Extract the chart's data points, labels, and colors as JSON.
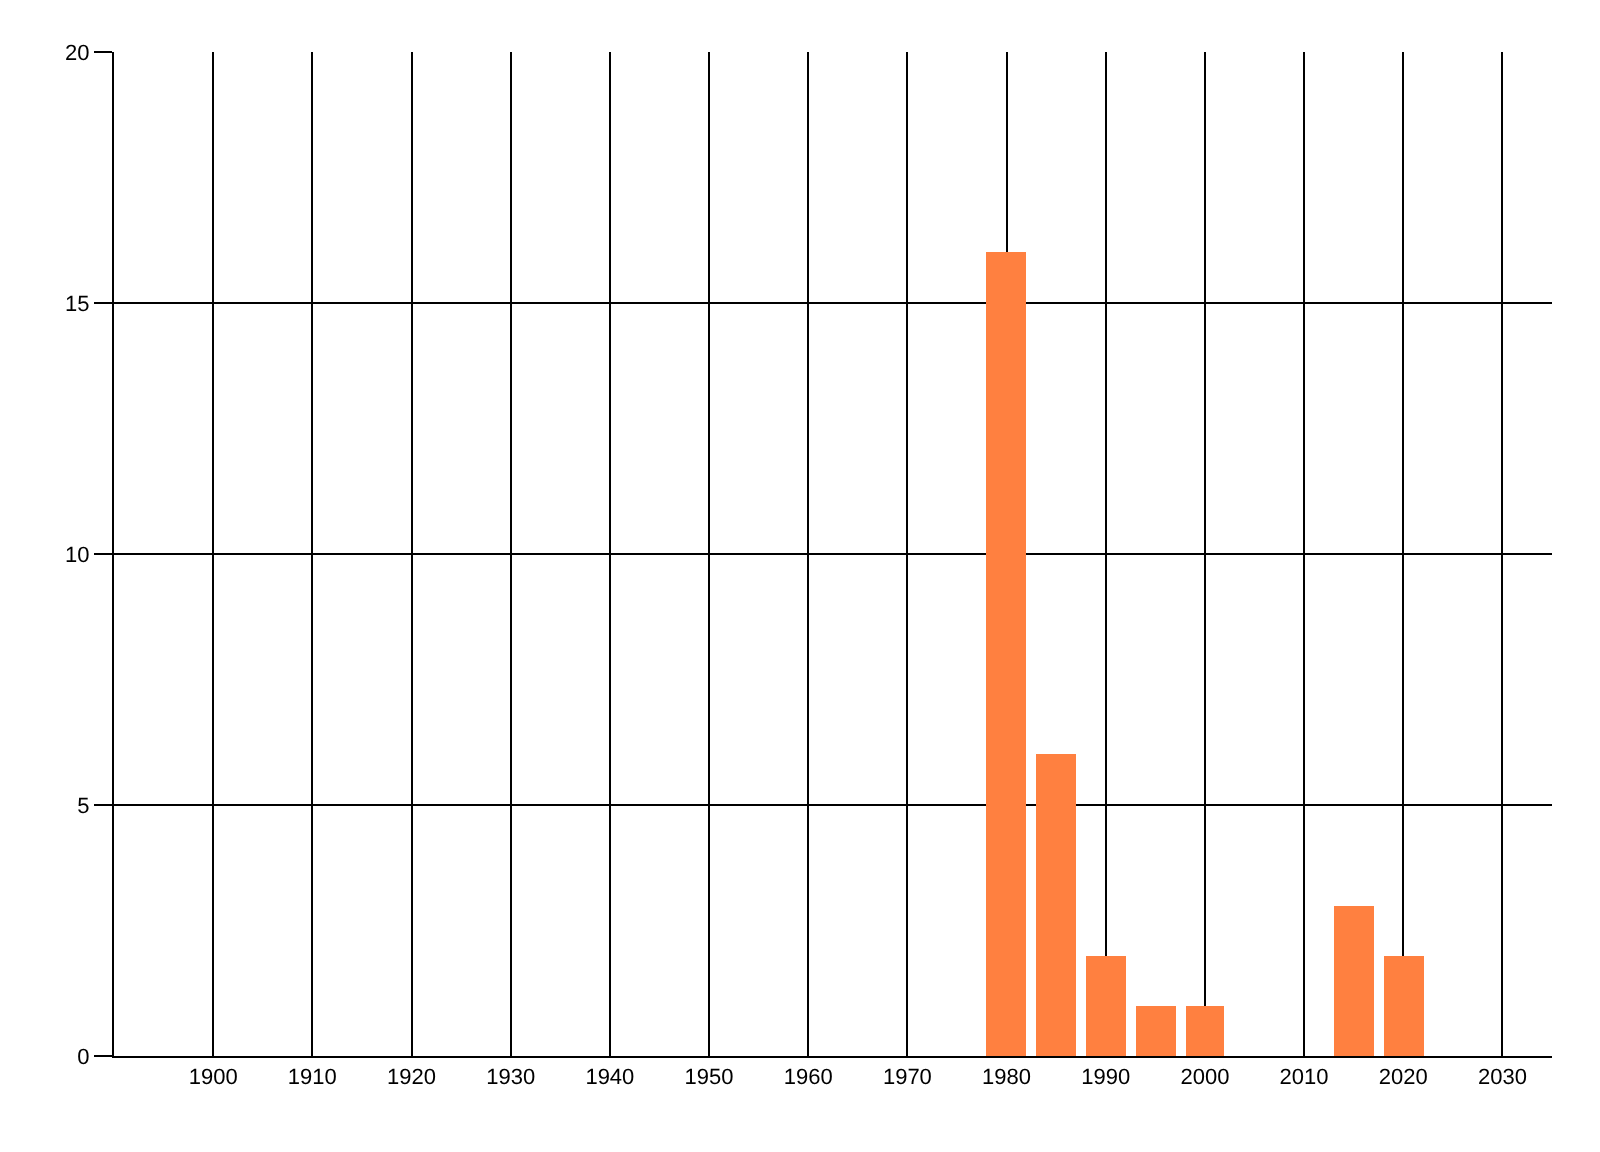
{
  "chart_data": {
    "type": "bar",
    "x": [
      1980,
      1985,
      1990,
      1995,
      2000,
      2015,
      2020
    ],
    "values": [
      16,
      6,
      2,
      1,
      1,
      3,
      2
    ],
    "color": "#ff8040",
    "xlim": [
      1890,
      2035
    ],
    "xticks": [
      1900,
      1910,
      1920,
      1930,
      1940,
      1950,
      1960,
      1970,
      1980,
      1990,
      2000,
      2010,
      2020,
      2030
    ],
    "ylim": [
      0,
      20
    ],
    "yticks": [
      0,
      5,
      10,
      15,
      20
    ],
    "grid": true
  }
}
